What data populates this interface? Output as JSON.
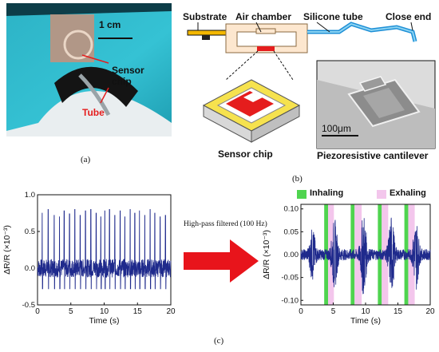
{
  "panel_a": {
    "caption": "(a)",
    "scale_bar": "1 cm",
    "label_sensor": "Sensor chip",
    "label_tube": "Tube"
  },
  "panel_b": {
    "caption": "(b)",
    "label_substrate": "Substrate",
    "label_air_chamber": "Air chamber",
    "label_silicone_tube": "Silicone tube",
    "label_close_end": "Close end",
    "label_sensor_chip": "Sensor chip",
    "label_cantilever": "Piezoresistive cantilever",
    "sem_scale": "100μm"
  },
  "panel_c": {
    "caption": "(c)",
    "arrow_text": "High-pass filtered (100 Hz)",
    "legend_inhaling": "Inhaling",
    "legend_exhaling": "Exhaling",
    "colors": {
      "signal": "#1f2a8c",
      "inhale": "#4fd44f",
      "exhale": "#f3c6ec",
      "arrow": "#e8141b"
    }
  },
  "chart_data": [
    {
      "type": "line",
      "title": "",
      "xlabel": "Time (s)",
      "ylabel": "ΔR/R (×10⁻³)",
      "xlim": [
        0,
        20
      ],
      "ylim": [
        -0.5,
        1.0
      ],
      "xticks": [
        "0",
        "5",
        "10",
        "15",
        "20"
      ],
      "yticks": [
        "-0.5",
        "0.0",
        "0.5",
        "1.0"
      ],
      "baseline": 0.0,
      "peak_times_s": [
        0.7,
        1.6,
        2.5,
        3.3,
        4.0,
        4.8,
        5.6,
        6.4,
        7.2,
        8.0,
        8.8,
        9.5,
        10.1,
        10.8,
        11.6,
        12.4,
        13.1,
        13.9,
        14.6,
        15.3,
        16.1,
        16.9,
        17.6,
        18.4,
        19.2
      ],
      "peak_values": [
        0.75,
        0.8,
        0.72,
        0.7,
        0.78,
        0.74,
        0.8,
        0.72,
        0.78,
        0.8,
        0.75,
        0.7,
        0.78,
        0.8,
        0.72,
        0.78,
        0.7,
        0.8,
        0.75,
        0.78,
        0.72,
        0.8,
        0.75,
        0.7,
        0.72
      ],
      "trough_values": -0.28
    },
    {
      "type": "line",
      "title": "",
      "xlabel": "Time (s)",
      "ylabel": "ΔR/R (×10⁻³)",
      "xlim": [
        0,
        20
      ],
      "ylim": [
        -0.11,
        0.11
      ],
      "xticks": [
        "0",
        "5",
        "10",
        "15",
        "20"
      ],
      "yticks": [
        "-0.10",
        "-0.05",
        "0.00",
        "0.05",
        "0.10"
      ],
      "inhaling_intervals_s": [
        [
          3.6,
          4.2
        ],
        [
          7.7,
          8.3
        ],
        [
          11.9,
          12.5
        ],
        [
          16.0,
          16.6
        ]
      ],
      "exhaling_intervals_s": [
        [
          4.2,
          5.1
        ],
        [
          8.3,
          9.4
        ],
        [
          12.5,
          13.5
        ],
        [
          16.6,
          17.6
        ]
      ],
      "burst_centers_s": [
        1.8,
        5.2,
        9.7,
        14.0,
        17.8
      ],
      "burst_amplitudes": [
        0.05,
        0.07,
        0.085,
        0.08,
        0.07
      ],
      "noise_amplitude": 0.012
    }
  ]
}
